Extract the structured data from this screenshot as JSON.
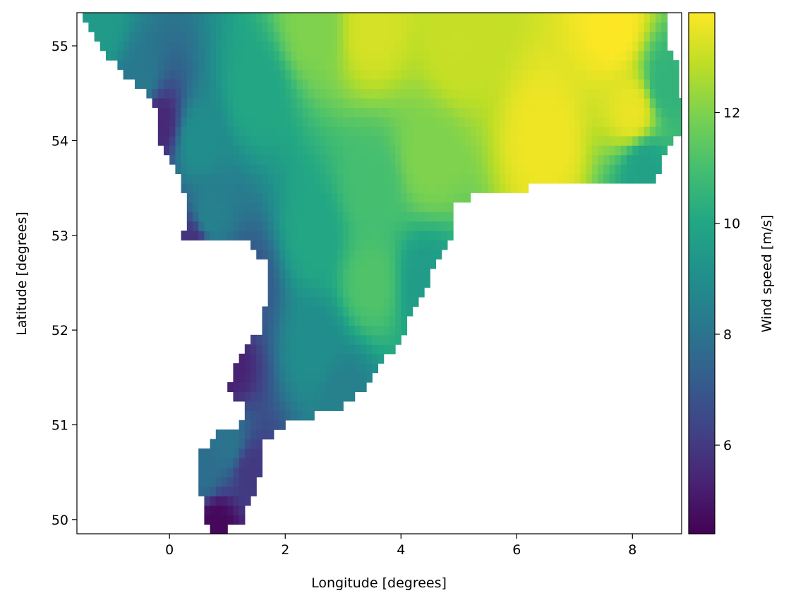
{
  "chart_data": {
    "type": "heatmap",
    "title": "",
    "xlabel": "Longitude [degrees]",
    "ylabel": "Latitude [degrees]",
    "colorbar_label": "Wind speed [m/s]",
    "colormap": "viridis",
    "xlim": [
      -1.6,
      8.85
    ],
    "ylim": [
      49.85,
      55.35
    ],
    "clim": [
      4.4,
      13.8
    ],
    "grid": false,
    "x_ticks": [
      {
        "value": 0,
        "label": "0"
      },
      {
        "value": 2,
        "label": "2"
      },
      {
        "value": 4,
        "label": "4"
      },
      {
        "value": 6,
        "label": "6"
      },
      {
        "value": 8,
        "label": "8"
      }
    ],
    "y_ticks": [
      {
        "value": 50,
        "label": "50"
      },
      {
        "value": 51,
        "label": "51"
      },
      {
        "value": 52,
        "label": "52"
      },
      {
        "value": 53,
        "label": "53"
      },
      {
        "value": 54,
        "label": "54"
      },
      {
        "value": 55,
        "label": "55"
      }
    ],
    "colorbar_ticks": [
      {
        "value": 6,
        "label": "6"
      },
      {
        "value": 8,
        "label": "8"
      },
      {
        "value": 10,
        "label": "10"
      },
      {
        "value": 12,
        "label": "12"
      }
    ],
    "grid_resolution_deg": {
      "lon": 0.1,
      "lat": 0.1
    },
    "region_mask_west_edge": [
      [
        55.35,
        -1.6
      ],
      [
        55.1,
        -1.25
      ],
      [
        54.9,
        -1.05
      ],
      [
        54.7,
        -0.75
      ],
      [
        54.5,
        -0.35
      ],
      [
        54.3,
        -0.15
      ],
      [
        54.0,
        -0.15
      ],
      [
        53.7,
        0.15
      ],
      [
        53.4,
        0.3
      ],
      [
        53.1,
        0.3
      ],
      [
        52.95,
        0.2
      ],
      [
        52.9,
        1.4
      ],
      [
        52.7,
        1.7
      ],
      [
        52.3,
        1.65
      ],
      [
        52.0,
        1.55
      ],
      [
        51.7,
        1.2
      ],
      [
        51.4,
        1.0
      ],
      [
        51.2,
        1.3
      ],
      [
        51.0,
        1.2
      ],
      [
        50.9,
        0.8
      ],
      [
        50.7,
        0.5
      ],
      [
        50.4,
        0.5
      ],
      [
        50.1,
        0.6
      ],
      [
        49.85,
        0.7
      ]
    ],
    "region_mask_east_edge": [
      [
        55.35,
        8.6
      ],
      [
        55.0,
        8.6
      ],
      [
        54.8,
        8.8
      ],
      [
        54.4,
        8.85
      ],
      [
        54.1,
        8.85
      ],
      [
        53.9,
        8.6
      ],
      [
        53.6,
        8.4
      ],
      [
        53.7,
        7.0
      ],
      [
        53.5,
        6.2
      ],
      [
        53.4,
        5.2
      ],
      [
        53.3,
        4.9
      ],
      [
        53.0,
        4.85
      ],
      [
        52.7,
        4.6
      ],
      [
        52.4,
        4.4
      ],
      [
        52.2,
        4.2
      ],
      [
        51.9,
        4.0
      ],
      [
        51.7,
        3.7
      ],
      [
        51.4,
        3.4
      ],
      [
        51.2,
        3.0
      ],
      [
        51.0,
        2.0
      ],
      [
        50.8,
        1.6
      ],
      [
        50.5,
        1.6
      ],
      [
        50.2,
        1.4
      ],
      [
        50.0,
        1.3
      ],
      [
        49.85,
        0.9
      ]
    ],
    "value_samples": [
      {
        "lon": -1.2,
        "lat": 55.2,
        "value": 9.5
      },
      {
        "lon": -0.5,
        "lat": 54.6,
        "value": 8.2
      },
      {
        "lon": -0.2,
        "lat": 54.2,
        "value": 5.5
      },
      {
        "lon": 0.5,
        "lat": 54.0,
        "value": 9.0
      },
      {
        "lon": 1.5,
        "lat": 54.5,
        "value": 10.0
      },
      {
        "lon": 2.5,
        "lat": 55.2,
        "value": 12.0
      },
      {
        "lon": 3.5,
        "lat": 55.2,
        "value": 13.2
      },
      {
        "lon": 5.0,
        "lat": 55.0,
        "value": 13.0
      },
      {
        "lon": 7.7,
        "lat": 55.2,
        "value": 13.8
      },
      {
        "lon": 8.0,
        "lat": 54.3,
        "value": 13.5
      },
      {
        "lon": 6.5,
        "lat": 54.0,
        "value": 13.6
      },
      {
        "lon": 8.6,
        "lat": 54.6,
        "value": 10.5
      },
      {
        "lon": 8.2,
        "lat": 53.7,
        "value": 9.8
      },
      {
        "lon": 4.5,
        "lat": 53.8,
        "value": 12.0
      },
      {
        "lon": 3.5,
        "lat": 53.5,
        "value": 11.0
      },
      {
        "lon": 2.5,
        "lat": 53.0,
        "value": 10.0
      },
      {
        "lon": 3.5,
        "lat": 52.5,
        "value": 11.2
      },
      {
        "lon": 4.4,
        "lat": 52.5,
        "value": 9.6
      },
      {
        "lon": 2.5,
        "lat": 51.8,
        "value": 9.0
      },
      {
        "lon": 3.0,
        "lat": 51.3,
        "value": 8.5
      },
      {
        "lon": 1.3,
        "lat": 52.5,
        "value": 7.0
      },
      {
        "lon": 0.4,
        "lat": 52.9,
        "value": 5.8
      },
      {
        "lon": 1.0,
        "lat": 51.6,
        "value": 5.3
      },
      {
        "lon": 1.0,
        "lat": 50.8,
        "value": 8.0
      },
      {
        "lon": 0.6,
        "lat": 50.5,
        "value": 7.8
      },
      {
        "lon": 1.4,
        "lat": 50.5,
        "value": 6.0
      },
      {
        "lon": 0.8,
        "lat": 49.95,
        "value": 4.6
      },
      {
        "lon": 0.7,
        "lat": 53.2,
        "value": 8.5
      }
    ]
  }
}
